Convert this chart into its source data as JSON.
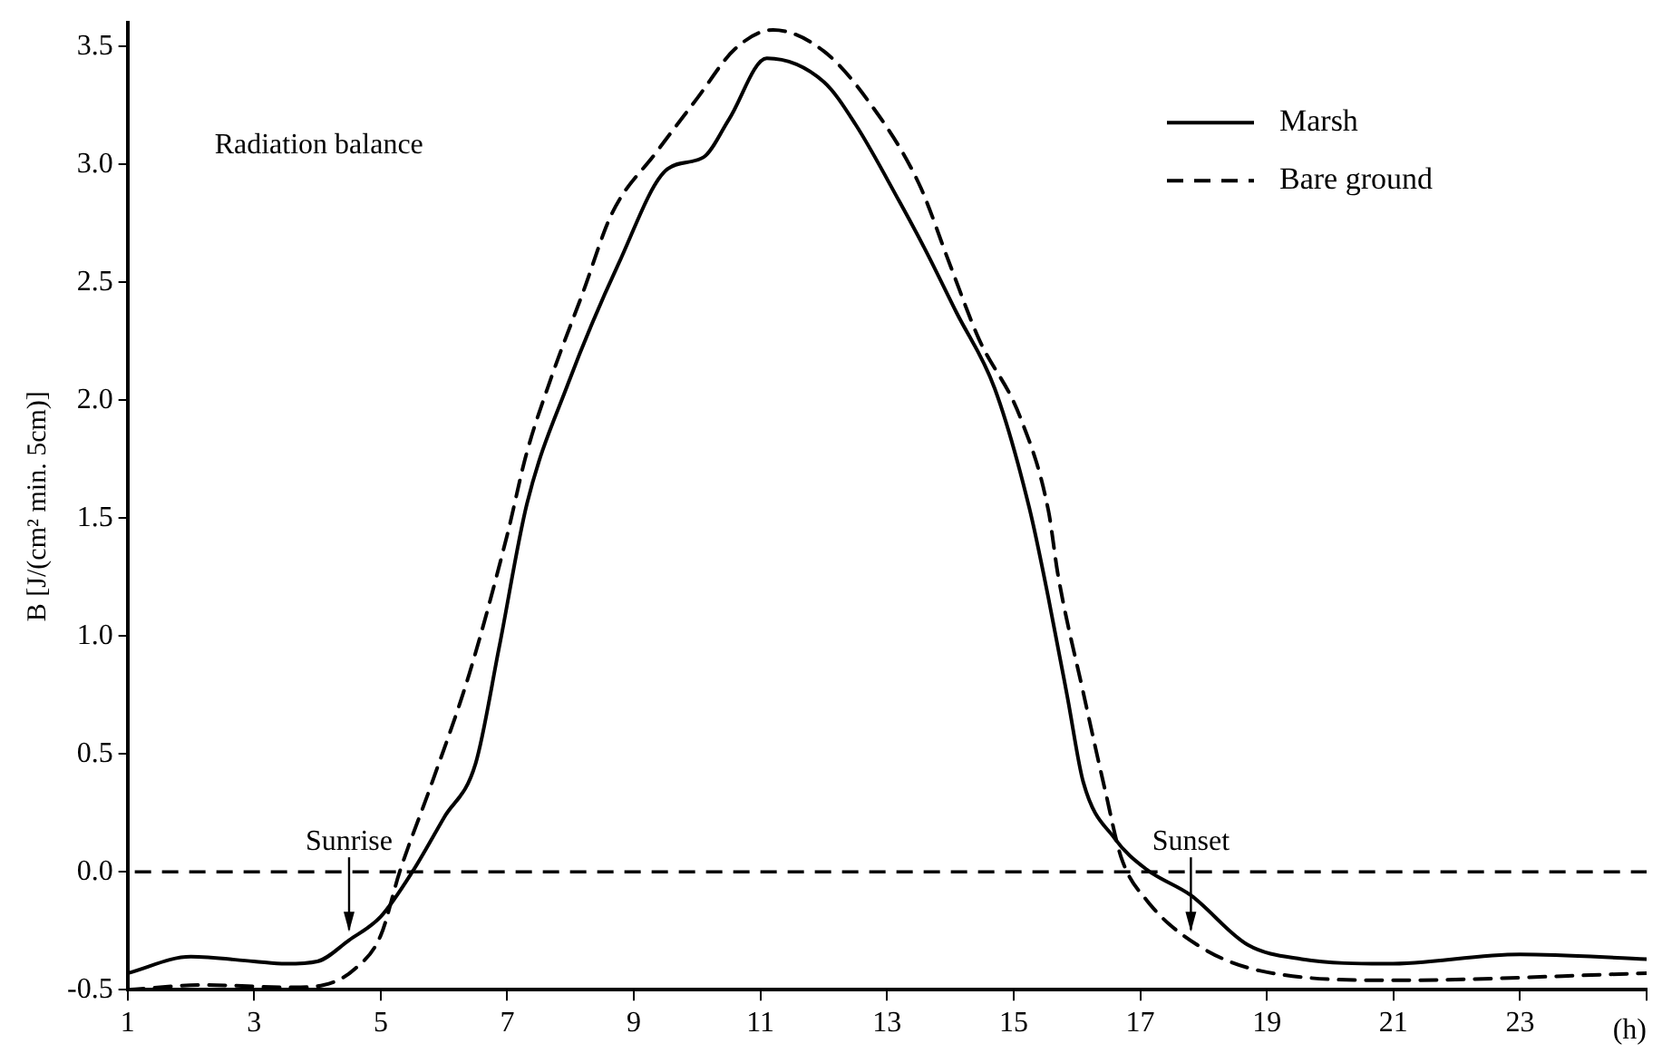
{
  "chart_data": {
    "type": "line",
    "ylabel": "B [J/(cm² min. 5cm)]",
    "xlabel": "(h)",
    "xlim": [
      1,
      25
    ],
    "xticks": [
      1,
      3,
      5,
      7,
      9,
      11,
      13,
      15,
      17,
      19,
      21,
      23,
      {
        "value": 25,
        "label": null
      }
    ],
    "ylim": [
      -0.5,
      3.6
    ],
    "yticks": [
      -0.5,
      {
        "value": 0,
        "label": "0.0"
      },
      0.5,
      {
        "value": 1,
        "label": "1.0"
      },
      1.5,
      {
        "value": 2,
        "label": "2.0"
      },
      2.5,
      {
        "value": 3,
        "label": "3.0"
      },
      3.5
    ],
    "grid": false,
    "legend": "top right",
    "marker": "none",
    "series": [
      {
        "name": "Marsh",
        "color": "#000000",
        "line_style": "solid",
        "x": [
          1,
          2,
          3,
          3.5,
          4,
          4.5,
          5,
          5.5,
          6,
          6.5,
          6.87,
          7.31,
          7.96,
          8.76,
          9.53,
          10.1,
          10.5,
          11.1,
          12.0,
          12.5,
          13.2,
          13.6,
          14.1,
          14.7,
          15.25,
          15.55,
          15.85,
          16.1,
          16.6,
          17.1,
          17.8,
          18.7,
          19.55,
          20.9,
          23.0,
          25
        ],
        "values": [
          -0.43,
          -0.36,
          -0.38,
          -0.39,
          -0.38,
          -0.29,
          -0.19,
          0.0,
          0.23,
          0.46,
          0.95,
          1.56,
          2.07,
          2.58,
          2.98,
          3.03,
          3.19,
          3.45,
          3.35,
          3.17,
          2.84,
          2.64,
          2.37,
          2.05,
          1.54,
          1.16,
          0.74,
          0.38,
          0.14,
          0.01,
          -0.1,
          -0.31,
          -0.37,
          -0.39,
          -0.35,
          -0.37
        ]
      },
      {
        "name": "Bare ground",
        "color": "#000000",
        "line_style": "dashed",
        "x": [
          1,
          2.2,
          3.6,
          4.1,
          4.6,
          5.0,
          5.3,
          5.8,
          6.4,
          7.0,
          7.3,
          7.7,
          8.2,
          8.65,
          9.35,
          10.0,
          10.6,
          11.2,
          12.0,
          12.7,
          13.5,
          14.0,
          14.45,
          15.1,
          15.55,
          15.7,
          16.1,
          16.45,
          16.7,
          17.1,
          17.9,
          18.9,
          21,
          25
        ],
        "values": [
          -0.5,
          -0.48,
          -0.49,
          -0.48,
          -0.41,
          -0.27,
          0.0,
          0.37,
          0.84,
          1.43,
          1.77,
          2.1,
          2.46,
          2.79,
          3.05,
          3.28,
          3.49,
          3.57,
          3.48,
          3.27,
          2.92,
          2.57,
          2.26,
          1.93,
          1.53,
          1.26,
          0.76,
          0.34,
          0.06,
          -0.12,
          -0.31,
          -0.42,
          -0.46,
          -0.43
        ]
      }
    ],
    "ref_lines": [
      {
        "axis": "y",
        "value": 0,
        "color": "#000000",
        "line_style": "dashed"
      }
    ],
    "annotations": [
      "Radiation balance",
      {
        "text": "Sunrise",
        "x": 4.5,
        "y": 0
      },
      {
        "text": "Sunset",
        "x": 17.8,
        "y": 0
      }
    ]
  }
}
